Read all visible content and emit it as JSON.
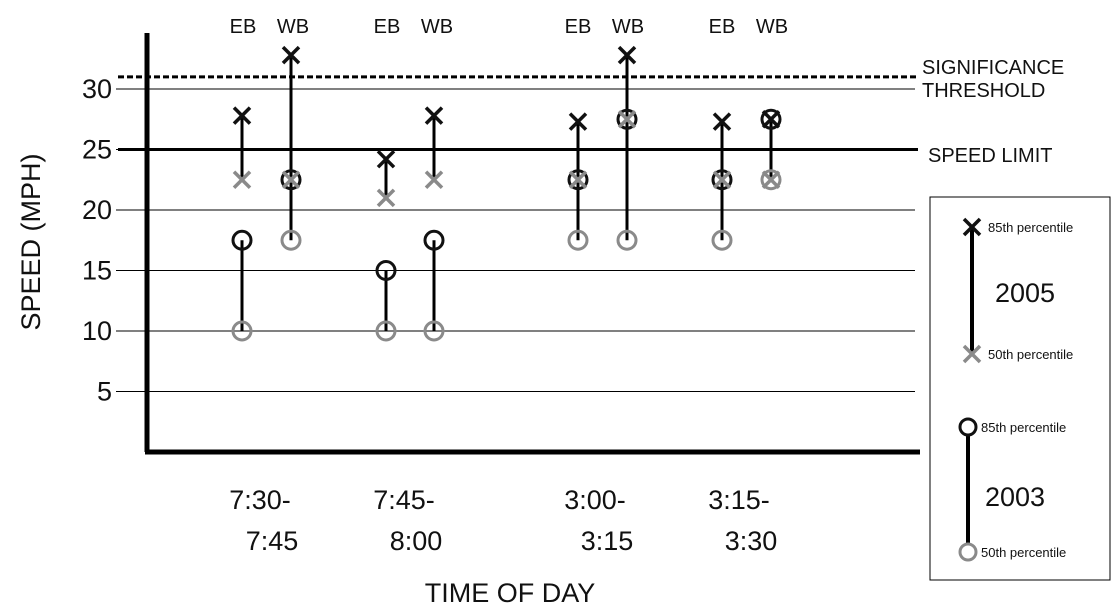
{
  "chart_data": {
    "type": "scatter",
    "title": "",
    "xlabel": "TIME OF DAY",
    "ylabel": "SPEED (MPH)",
    "ylim": [
      0,
      33
    ],
    "yticks": [
      5,
      10,
      15,
      20,
      25,
      30
    ],
    "grid": true,
    "colors": {
      "y2005_85": "#111111",
      "y2005_50": "#8a8a8a",
      "y2003_85": "#111111",
      "y2003_50": "#8a8a8a"
    },
    "periods": [
      {
        "label_line1": "7:30-",
        "label_line2": "7:45"
      },
      {
        "label_line1": "7:45-",
        "label_line2": "8:00"
      },
      {
        "label_line1": "3:00-",
        "label_line2": "3:15"
      },
      {
        "label_line1": "3:15-",
        "label_line2": "3:30"
      }
    ],
    "direction_labels": [
      "EB",
      "WB"
    ],
    "groups": [
      {
        "period": 0,
        "direction": "EB",
        "p85_2005": 27.8,
        "p50_2005": 22.5,
        "p85_2003": 17.5,
        "p50_2003": 10
      },
      {
        "period": 0,
        "direction": "WB",
        "p85_2005": 32.8,
        "p50_2005": 22.5,
        "p85_2003": 22.5,
        "p50_2003": 17.5
      },
      {
        "period": 1,
        "direction": "EB",
        "p85_2005": 24.2,
        "p50_2005": 21.0,
        "p85_2003": 15,
        "p50_2003": 10
      },
      {
        "period": 1,
        "direction": "WB",
        "p85_2005": 27.8,
        "p50_2005": 22.5,
        "p85_2003": 17.5,
        "p50_2003": 10
      },
      {
        "period": 2,
        "direction": "EB",
        "p85_2005": 27.3,
        "p50_2005": 22.5,
        "p85_2003": 22.5,
        "p50_2003": 17.5
      },
      {
        "period": 2,
        "direction": "WB",
        "p85_2005": 32.8,
        "p50_2005": 27.5,
        "p85_2003": 27.5,
        "p50_2003": 17.5
      },
      {
        "period": 3,
        "direction": "EB",
        "p85_2005": 27.3,
        "p50_2005": 22.5,
        "p85_2003": 22.5,
        "p50_2003": 17.5
      },
      {
        "period": 3,
        "direction": "WB",
        "p85_2005": 27.5,
        "p50_2005": 22.5,
        "p85_2003": 27.5,
        "p50_2003": 22.5
      }
    ],
    "reference_lines": [
      {
        "value": 25,
        "label": "SPEED LIMIT",
        "style": "solid"
      },
      {
        "value": 31,
        "label_line1": "SIGNIFICANCE",
        "label_line2": "THRESHOLD",
        "style": "dashed"
      }
    ],
    "legend": {
      "placement": "right",
      "y2005": {
        "label": "2005",
        "p85": "85th percentile",
        "p50": "50th percentile"
      },
      "y2003": {
        "label": "2003",
        "p85": "85th percentile",
        "p50": "50th percentile"
      }
    }
  }
}
